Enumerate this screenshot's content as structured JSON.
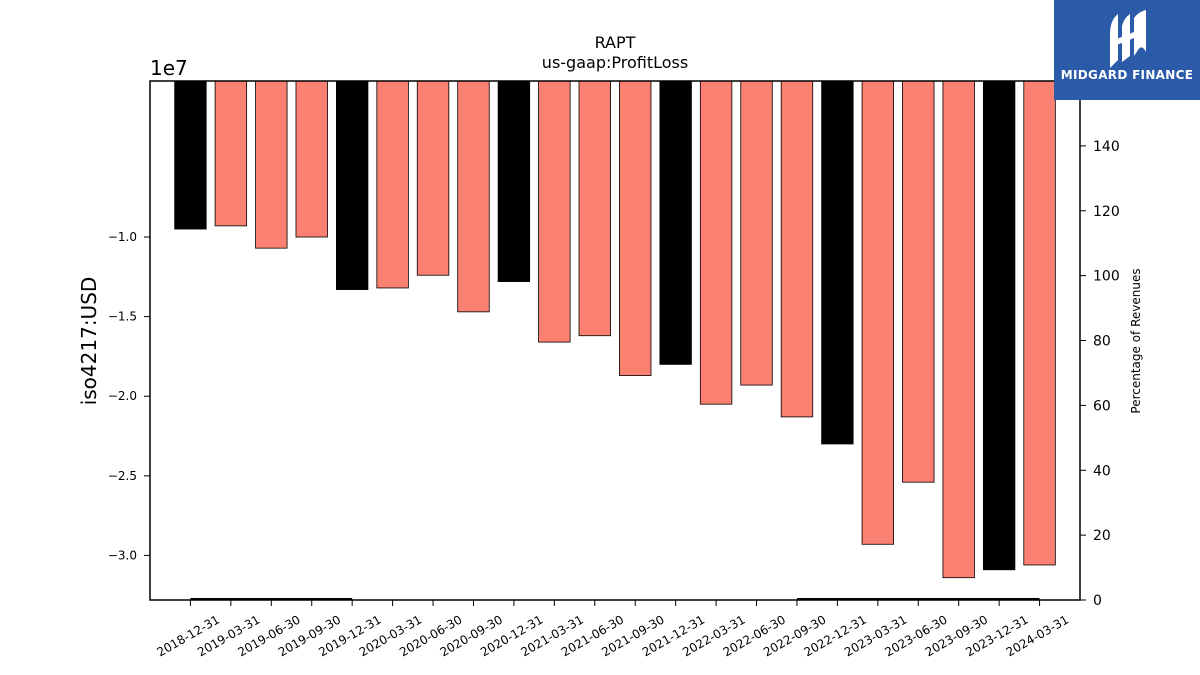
{
  "brand": {
    "name": "MIDGARD FINANCE",
    "bg_color": "#2a5aa8",
    "icon": "midgard-logo-icon"
  },
  "chart_data": {
    "type": "bar",
    "title": "RAPT",
    "subtitle": "us-gaap:ProfitLoss",
    "ylabel": "iso4217:USD",
    "y_offset_label": "1e7",
    "y2label": "Percentage of Revenues",
    "y_scale_factor": 10000000,
    "ylim": [
      -32800000,
      -200000
    ],
    "y2lim": [
      0,
      160
    ],
    "yticks": [
      -10000000,
      -15000000,
      -20000000,
      -25000000,
      -30000000
    ],
    "ytick_labels": [
      "−1.0",
      "−1.5",
      "−2.0",
      "−2.5",
      "−3.0"
    ],
    "y2ticks": [
      0,
      20,
      40,
      60,
      80,
      100,
      120,
      140
    ],
    "grid": false,
    "legend": "none",
    "colors": {
      "annual": "#000000",
      "quarterly": "#fa8072"
    },
    "categories": [
      "2018-12-31",
      "2019-03-31",
      "2019-06-30",
      "2019-09-30",
      "2019-12-31",
      "2020-03-31",
      "2020-06-30",
      "2020-09-30",
      "2020-12-31",
      "2021-03-31",
      "2021-06-30",
      "2021-09-30",
      "2021-12-31",
      "2022-03-31",
      "2022-06-30",
      "2022-09-30",
      "2022-12-31",
      "2023-03-31",
      "2023-06-30",
      "2023-09-30",
      "2023-12-31",
      "2024-03-31"
    ],
    "values": [
      -9500000,
      -9300000,
      -10700000,
      -10000000,
      -13300000,
      -13200000,
      -12400000,
      -14700000,
      -12800000,
      -16600000,
      -16200000,
      -18700000,
      -18000000,
      -20500000,
      -19300000,
      -21300000,
      -23000000,
      -29300000,
      -25400000,
      -31400000,
      -30900000,
      -30600000
    ],
    "period_type": [
      "annual",
      "quarterly",
      "quarterly",
      "quarterly",
      "annual",
      "quarterly",
      "quarterly",
      "quarterly",
      "annual",
      "quarterly",
      "quarterly",
      "quarterly",
      "annual",
      "quarterly",
      "quarterly",
      "quarterly",
      "annual",
      "quarterly",
      "quarterly",
      "quarterly",
      "annual",
      "quarterly"
    ],
    "secondary_series": [
      {
        "x_from": "2018-12-31",
        "x_to": "2019-12-31",
        "value": 0.3
      },
      {
        "x_from": "2022-09-30",
        "x_to": "2024-03-31",
        "value": 0.3
      }
    ]
  }
}
